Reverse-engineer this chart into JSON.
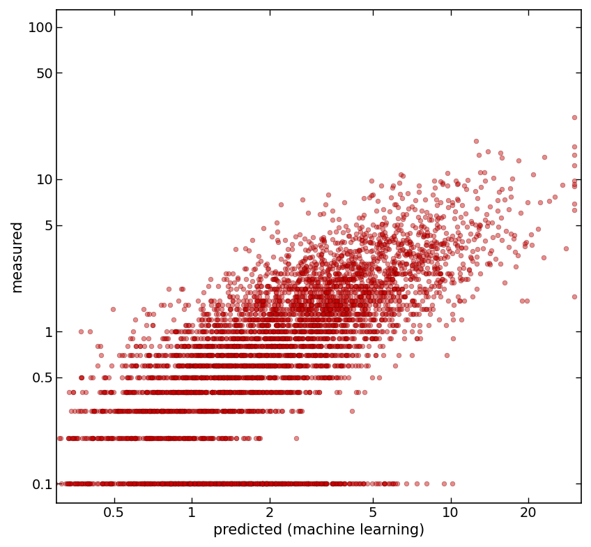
{
  "xlabel": "predicted (machine learning)",
  "ylabel": "measured",
  "point_color": "#CC0000",
  "point_edge_color": "#7a0000",
  "point_alpha": 0.45,
  "point_size": 22,
  "xlim": [
    0.3,
    32
  ],
  "ylim": [
    0.075,
    130
  ],
  "xticks": [
    0.5,
    1,
    2,
    5,
    10,
    20
  ],
  "yticks": [
    0.1,
    0.5,
    1,
    5,
    10,
    50,
    100
  ],
  "xtick_labels": [
    "0.5",
    "1",
    "2",
    "5",
    "10",
    "20"
  ],
  "ytick_labels": [
    "0.1",
    "0.5",
    "1",
    "5",
    "10",
    "50",
    "100"
  ],
  "background_color": "#ffffff",
  "xlabel_fontsize": 15,
  "ylabel_fontsize": 15,
  "tick_fontsize": 14,
  "n_points": 5000,
  "seed": 42,
  "quantized_meas": [
    0.1,
    0.2,
    0.3,
    0.4,
    0.5,
    0.6,
    0.7,
    0.8,
    0.9,
    1.0,
    1.1,
    1.2,
    1.3,
    1.4,
    1.5,
    1.6,
    1.7,
    1.8,
    1.9,
    2.0
  ]
}
